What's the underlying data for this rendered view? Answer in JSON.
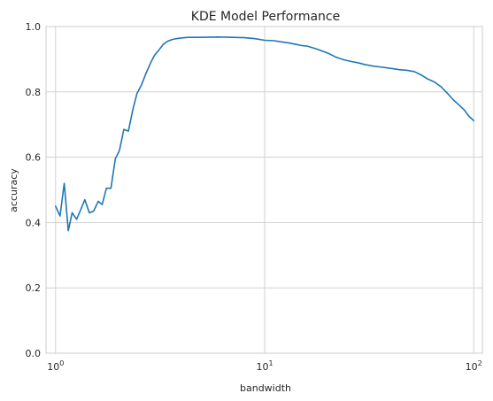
{
  "chart_data": {
    "type": "line",
    "title": "KDE Model Performance",
    "xlabel": "bandwidth",
    "ylabel": "accuracy",
    "xscale": "log",
    "xlim": [
      0.9,
      110
    ],
    "ylim": [
      0.0,
      1.0
    ],
    "grid": true,
    "x_ticks": [
      {
        "value": 1,
        "base": "10",
        "exp": "0"
      },
      {
        "value": 10,
        "base": "10",
        "exp": "1"
      },
      {
        "value": 100,
        "base": "10",
        "exp": "2"
      }
    ],
    "y_ticks": [
      {
        "value": 0.0,
        "label": "0.0"
      },
      {
        "value": 0.2,
        "label": "0.2"
      },
      {
        "value": 0.4,
        "label": "0.4"
      },
      {
        "value": 0.6,
        "label": "0.6"
      },
      {
        "value": 0.8,
        "label": "0.8"
      },
      {
        "value": 1.0,
        "label": "1.0"
      }
    ],
    "colors": {
      "series": "#1f77b4",
      "text": "#262626",
      "grid": "#cccccc"
    },
    "series": [
      {
        "x": [
          1.0,
          1.05,
          1.1,
          1.15,
          1.2,
          1.26,
          1.32,
          1.38,
          1.45,
          1.52,
          1.6,
          1.67,
          1.75,
          1.84,
          1.93,
          2.02,
          2.12,
          2.23,
          2.34,
          2.45,
          2.57,
          2.7,
          2.83,
          2.97,
          3.12,
          3.27,
          3.43,
          3.6,
          3.78,
          3.97,
          4.3,
          5.0,
          6.0,
          7.0,
          8.0,
          9.0,
          10.0,
          11.0,
          12.0,
          13.0,
          14.0,
          15.0,
          16.0,
          17.0,
          18.0,
          19.0,
          20.0,
          22.0,
          24.0,
          26.0,
          28.0,
          30.0,
          33.0,
          36.0,
          40.0,
          44.0,
          48.0,
          52.0,
          56.0,
          60.0,
          65.0,
          70.0,
          75.0,
          80.0,
          85.0,
          90.0,
          95.0,
          100.0
        ],
        "y": [
          0.45,
          0.42,
          0.52,
          0.375,
          0.43,
          0.41,
          0.44,
          0.47,
          0.43,
          0.435,
          0.465,
          0.455,
          0.505,
          0.505,
          0.595,
          0.62,
          0.685,
          0.68,
          0.745,
          0.795,
          0.82,
          0.855,
          0.885,
          0.912,
          0.928,
          0.945,
          0.955,
          0.96,
          0.963,
          0.965,
          0.967,
          0.967,
          0.968,
          0.967,
          0.966,
          0.963,
          0.958,
          0.957,
          0.953,
          0.95,
          0.946,
          0.942,
          0.94,
          0.935,
          0.93,
          0.924,
          0.919,
          0.906,
          0.898,
          0.893,
          0.889,
          0.884,
          0.879,
          0.876,
          0.872,
          0.868,
          0.866,
          0.862,
          0.852,
          0.84,
          0.83,
          0.815,
          0.795,
          0.775,
          0.76,
          0.745,
          0.725,
          0.712
        ]
      }
    ]
  }
}
